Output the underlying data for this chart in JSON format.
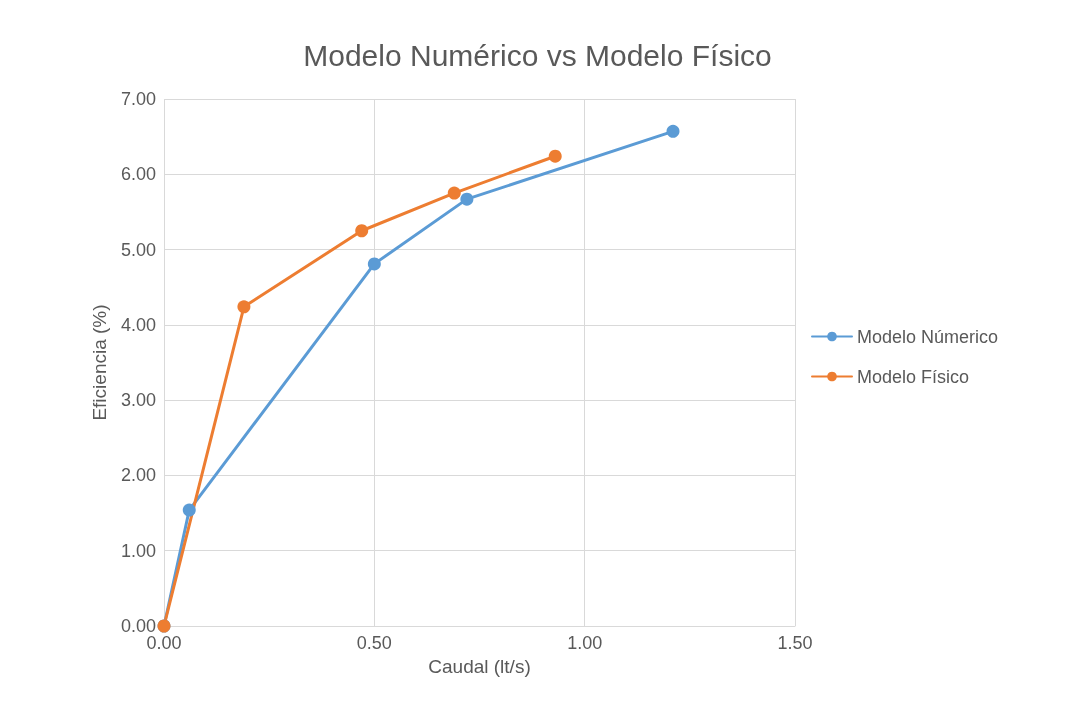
{
  "chart_data": {
    "type": "line",
    "title": "Modelo Numérico vs Modelo Físico",
    "xlabel": "Caudal (lt/s)",
    "ylabel": "Eficiencia (%)",
    "series": [
      {
        "name": "Modelo Númerico",
        "color": "#5b9bd5",
        "x": [
          0,
          0.06,
          0.5,
          0.72,
          1.21
        ],
        "values": [
          0,
          1.54,
          4.81,
          5.67,
          6.57
        ]
      },
      {
        "name": "Modelo Físico",
        "color": "#ed7d31",
        "x": [
          0,
          0.19,
          0.47,
          0.69,
          0.93
        ],
        "values": [
          0,
          4.24,
          5.25,
          5.75,
          6.24
        ]
      }
    ],
    "xlim": [
      0,
      1.5
    ],
    "xticks": [
      {
        "value": 0,
        "label": "0.00"
      },
      {
        "value": 0.5,
        "label": "0.50"
      },
      {
        "value": 1,
        "label": "1.00"
      },
      {
        "value": 1.5,
        "label": "1.50"
      }
    ],
    "ylim": [
      0,
      7
    ],
    "yticks": [
      {
        "value": 0,
        "label": "0.00"
      },
      {
        "value": 1,
        "label": "1.00"
      },
      {
        "value": 2,
        "label": "2.00"
      },
      {
        "value": 3,
        "label": "3.00"
      },
      {
        "value": 4,
        "label": "4.00"
      },
      {
        "value": 5,
        "label": "5.00"
      },
      {
        "value": 6,
        "label": "6.00"
      },
      {
        "value": 7,
        "label": "7.00"
      }
    ],
    "grid": true,
    "legend": "right",
    "marker": "circle",
    "line_style": "solid"
  }
}
